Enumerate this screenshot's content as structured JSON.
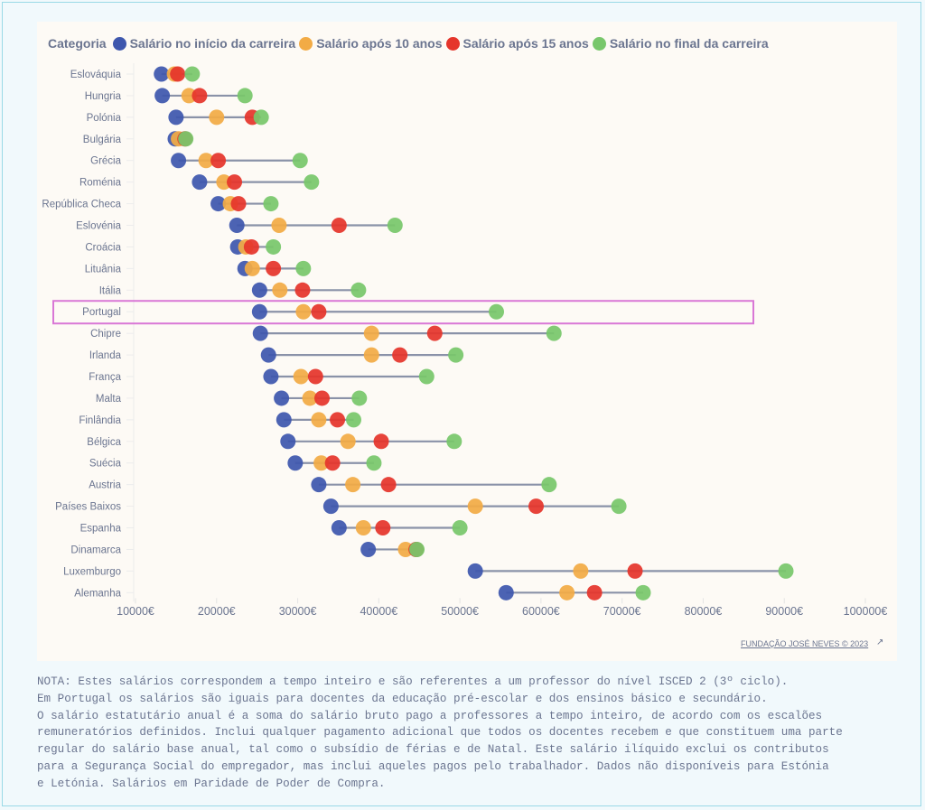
{
  "legend": {
    "title": "Categoria",
    "items": [
      {
        "label": "Salário no início da carreira",
        "color": "#3e57ad"
      },
      {
        "label": "Salário após 10 anos",
        "color": "#f2ab45"
      },
      {
        "label": "Salário após 15 anos",
        "color": "#e5352b"
      },
      {
        "label": "Salário no final da carreira",
        "color": "#78c76b"
      }
    ]
  },
  "highlight": {
    "country": "Portugal",
    "color": "#d977d6"
  },
  "chart_data": {
    "type": "dumbbell",
    "title": "",
    "xlabel": "",
    "ylabel": "",
    "xlim": [
      10000,
      100000
    ],
    "x_ticks": [
      "10000€",
      "20000€",
      "30000€",
      "40000€",
      "50000€",
      "60000€",
      "70000€",
      "80000€",
      "90000€",
      "100000€"
    ],
    "x_tick_values": [
      10000,
      20000,
      30000,
      40000,
      50000,
      60000,
      70000,
      80000,
      90000,
      100000
    ],
    "legend_position": "top-left",
    "grid": false,
    "categories": [
      "Eslováquia",
      "Hungria",
      "Polónia",
      "Bulgária",
      "Grécia",
      "Roménia",
      "República Checa",
      "Eslovénia",
      "Croácia",
      "Lituânia",
      "Itália",
      "Portugal",
      "Chipre",
      "Irlanda",
      "França",
      "Malta",
      "Finlândia",
      "Bélgica",
      "Suécia",
      "Austria",
      "Países Baixos",
      "Espanha",
      "Dinamarca",
      "Luxemburgo",
      "Alemanha"
    ],
    "series": [
      {
        "name": "Salário no início da carreira",
        "values": [
          13200,
          13300,
          15000,
          14900,
          15300,
          17900,
          20200,
          22500,
          22600,
          23500,
          25300,
          25300,
          25400,
          26400,
          26700,
          28000,
          28300,
          28800,
          29700,
          32600,
          34100,
          35100,
          38700,
          51900,
          55700
        ]
      },
      {
        "name": "Salário após 10 anos",
        "values": [
          14800,
          16600,
          20000,
          15300,
          18700,
          20900,
          21700,
          27700,
          23600,
          24400,
          27800,
          30700,
          39100,
          39100,
          30400,
          31500,
          32600,
          36200,
          32900,
          36800,
          51900,
          38100,
          43300,
          64900,
          63200
        ]
      },
      {
        "name": "Salário após 15 anos",
        "values": [
          15200,
          17900,
          24400,
          16100,
          20200,
          22200,
          22700,
          35100,
          24300,
          27000,
          30600,
          32600,
          46900,
          42600,
          32200,
          33000,
          34900,
          40300,
          34300,
          41200,
          59400,
          40500,
          44600,
          71600,
          66600
        ]
      },
      {
        "name": "Salário no final da carreira",
        "values": [
          17000,
          23500,
          25500,
          16200,
          30300,
          31700,
          26700,
          42000,
          27000,
          30700,
          37500,
          54500,
          61600,
          49500,
          45900,
          37600,
          36900,
          49300,
          39400,
          61000,
          69600,
          50000,
          44700,
          90200,
          72600
        ]
      }
    ]
  },
  "credit": {
    "label": "FUNDAÇÃO JOSÉ NEVES © 2023",
    "icon": "external-link-icon"
  },
  "note": {
    "lines": [
      "NOTA: Estes salários correspondem a tempo inteiro e são referentes a um professor do nível ISCED 2 (3º ciclo).",
      "Em Portugal os salários são iguais para docentes da educação pré-escolar e dos ensinos básico e secundário.",
      "O salário estatutário anual é a soma do salário bruto pago a professores a tempo inteiro, de acordo com os escalões",
      "remuneratórios definidos. Inclui qualquer pagamento adicional que todos os docentes recebem e que constituem uma parte",
      "regular do salário base anual, tal como o subsídio de férias e de Natal. Este salário ilíquido exclui os contributos",
      "para a Segurança Social do empregador, mas inclui aqueles pagos pelo trabalhador. Dados não disponíveis para Estónia",
      "e Letónia. Salários em Paridade de Poder de Compra."
    ]
  }
}
